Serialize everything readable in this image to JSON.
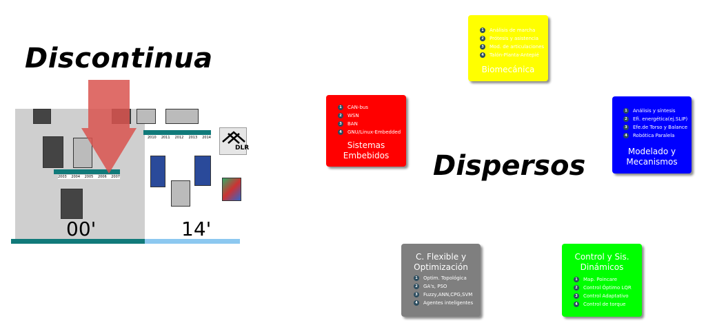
{
  "left_panel": {
    "title": "Discontinua",
    "year_start": "00'",
    "year_end": "14'",
    "timeline_a": [
      "2003",
      "2004",
      "2005",
      "2006",
      "2007"
    ],
    "timeline_b": [
      "2010",
      "2011",
      "2012",
      "2013",
      "2014"
    ],
    "logo_text": "DLR"
  },
  "center_title": "Dispersos",
  "boxes": {
    "biomecanica": {
      "title": "Biomecánica",
      "color": "#ffff00",
      "items": [
        "Análisis de marcha",
        "Prótesis y asistencia",
        "Mod. de articulaciones",
        "Talón-Planta-Antepié"
      ]
    },
    "embebidos": {
      "title_line1": "Sistemas",
      "title_line2": "Embebidos",
      "color": "#ff0000",
      "items": [
        "CAN-bus",
        "WSN",
        "BAN",
        "GNU/Linux-Embedded"
      ]
    },
    "modelado": {
      "title_line1": "Modelado y",
      "title_line2": "Mecanismos",
      "color": "#0000ff",
      "items": [
        "Análisis y síntesis",
        "Efi. energética(ej.SLIP)",
        "Efe.de Torso y Balance",
        "Robótica Paralela"
      ]
    },
    "flexible": {
      "title_line1": "C. Flexible y",
      "title_line2": "Optimización",
      "color": "#7f7f7f",
      "items": [
        "Optim. Topológica",
        "GA's, PSO",
        "Fuzzy,ANN,CPG,SVM",
        "Agentes inteligentes"
      ]
    },
    "control": {
      "title_line1": "Control y Sis.",
      "title_line2": "Dinámicos",
      "color": "#00ff00",
      "items": [
        "Map. Poincare",
        "Control Óptimo LQR",
        "Control Adaptativo",
        "Control de torque"
      ]
    }
  }
}
